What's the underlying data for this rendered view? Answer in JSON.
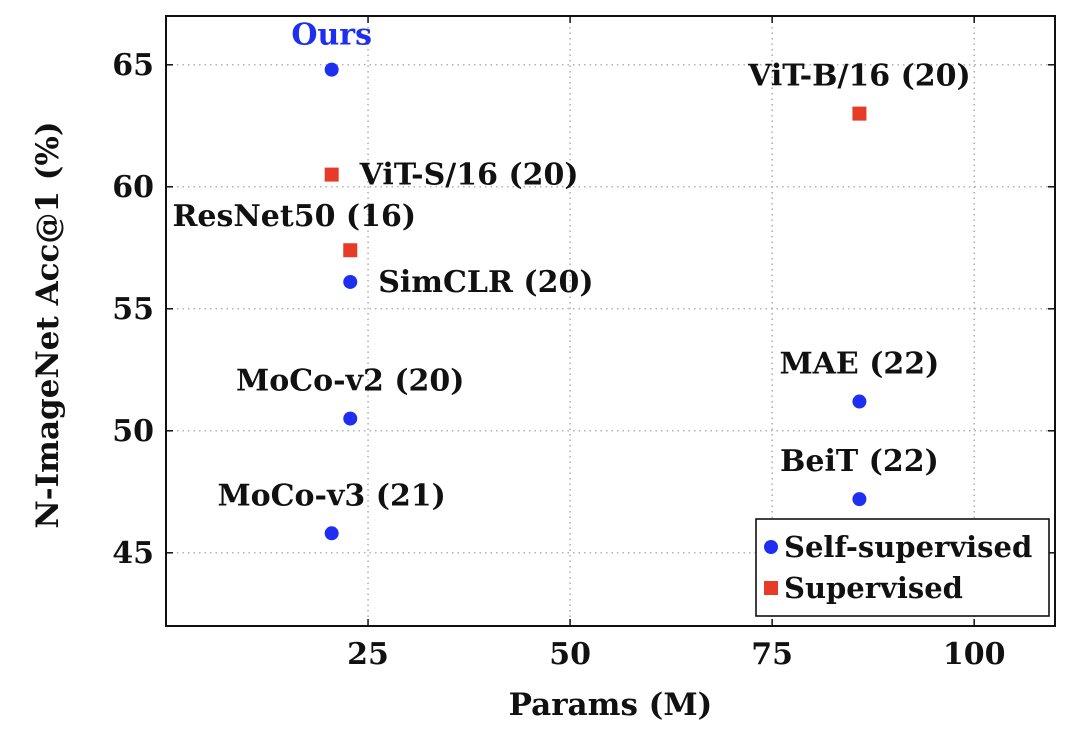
{
  "chart_data": {
    "type": "scatter",
    "title": "",
    "xlabel": "Params (M)",
    "ylabel": "N-ImageNet Acc@1 (%)",
    "xlim": [
      0,
      110
    ],
    "ylim": [
      42,
      67
    ],
    "xticks": [
      25,
      50,
      75,
      100
    ],
    "yticks": [
      45,
      50,
      55,
      60,
      65
    ],
    "grid": true,
    "legend_position": "bottom-right",
    "colors": {
      "self_supervised": "#1f2ff2",
      "supervised": "#e63b26",
      "ours_label": "#1f2ff2"
    },
    "series": [
      {
        "name": "Self-supervised",
        "marker": "circle",
        "points": [
          {
            "label": "Ours",
            "x": 20.5,
            "y": 64.8,
            "label_pos": "top",
            "highlight": true
          },
          {
            "label": "SimCLR (20)",
            "x": 22.8,
            "y": 56.1,
            "label_pos": "right"
          },
          {
            "label": "MoCo-v2 (20)",
            "x": 22.8,
            "y": 50.5,
            "label_pos": "top"
          },
          {
            "label": "MoCo-v3 (21)",
            "x": 20.5,
            "y": 45.8,
            "label_pos": "top"
          },
          {
            "label": "MAE (22)",
            "x": 85.8,
            "y": 51.2,
            "label_pos": "top"
          },
          {
            "label": "BeiT (22)",
            "x": 85.8,
            "y": 47.2,
            "label_pos": "top"
          }
        ]
      },
      {
        "name": "Supervised",
        "marker": "square",
        "points": [
          {
            "label": "ViT-S/16 (20)",
            "x": 20.5,
            "y": 60.5,
            "label_pos": "right"
          },
          {
            "label": "ResNet50 (16)",
            "x": 22.8,
            "y": 57.4,
            "label_pos": "top-left"
          },
          {
            "label": "ViT-B/16 (20)",
            "x": 85.8,
            "y": 63.0,
            "label_pos": "top"
          }
        ]
      }
    ]
  }
}
